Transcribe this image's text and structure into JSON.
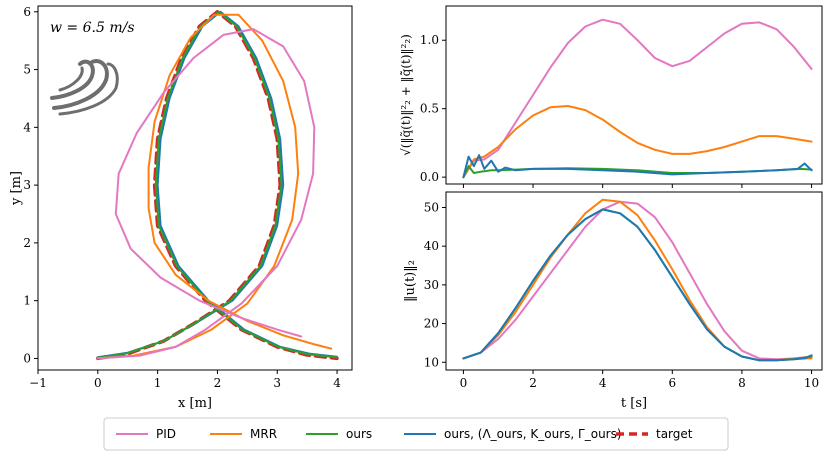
{
  "chart_data": [
    {
      "type": "line",
      "panel": "trajectory",
      "xlabel": "x [m]",
      "ylabel": "y [m]",
      "xlim": [
        -1,
        4.25
      ],
      "ylim": [
        -0.2,
        6.1
      ],
      "xticks": [
        -1,
        0,
        1,
        2,
        3,
        4
      ],
      "yticks": [
        0,
        1,
        2,
        3,
        4,
        5,
        6
      ],
      "annotation": "w = 6.5 m/s",
      "wind_icon": "wind-gust-icon",
      "series": [
        {
          "name": "target",
          "color": "#d62728",
          "dashed": true,
          "x": [
            0,
            0.5,
            1.1,
            1.6,
            2.2,
            2.7,
            2.95,
            3.05,
            3.0,
            2.85,
            2.6,
            2.3,
            2.0,
            1.7,
            1.4,
            1.15,
            1.0,
            0.95,
            1.0,
            1.3,
            1.8,
            2.4,
            3.0,
            3.5,
            4.0
          ],
          "y": [
            0,
            0.08,
            0.3,
            0.6,
            1.0,
            1.6,
            2.3,
            3.0,
            3.8,
            4.5,
            5.2,
            5.75,
            6.0,
            5.75,
            5.2,
            4.5,
            3.8,
            3.0,
            2.3,
            1.6,
            1.0,
            0.5,
            0.2,
            0.06,
            0
          ]
        },
        {
          "name": "ours, (Λ_ours, K_ours, Γ_ours)",
          "color": "#1f77b4",
          "dashed": false,
          "x": [
            0,
            0.5,
            1.1,
            1.65,
            2.25,
            2.75,
            3.0,
            3.1,
            3.05,
            2.9,
            2.65,
            2.35,
            2.05,
            1.75,
            1.45,
            1.2,
            1.05,
            1.0,
            1.05,
            1.35,
            1.85,
            2.45,
            3.05,
            3.55,
            4.0
          ],
          "y": [
            0.02,
            0.1,
            0.3,
            0.62,
            1.0,
            1.6,
            2.3,
            3.0,
            3.8,
            4.5,
            5.2,
            5.75,
            6.0,
            5.75,
            5.2,
            4.5,
            3.8,
            3.0,
            2.3,
            1.6,
            1.0,
            0.5,
            0.2,
            0.08,
            0.03
          ]
        },
        {
          "name": "ours",
          "color": "#2ca02c",
          "dashed": false,
          "x": [
            0,
            0.5,
            1.1,
            1.62,
            2.22,
            2.72,
            2.97,
            3.07,
            3.02,
            2.87,
            2.62,
            2.32,
            2.02,
            1.72,
            1.42,
            1.17,
            1.02,
            0.97,
            1.02,
            1.32,
            1.82,
            2.42,
            3.02,
            3.52,
            4.0
          ],
          "y": [
            0.01,
            0.09,
            0.3,
            0.61,
            1.0,
            1.6,
            2.3,
            3.0,
            3.8,
            4.5,
            5.2,
            5.75,
            6.0,
            5.75,
            5.2,
            4.5,
            3.8,
            3.0,
            2.3,
            1.6,
            1.0,
            0.5,
            0.2,
            0.07,
            0.02
          ]
        },
        {
          "name": "MRR",
          "color": "#ff7f0e",
          "dashed": false,
          "x": [
            0,
            0.6,
            1.3,
            1.9,
            2.5,
            2.95,
            3.25,
            3.35,
            3.3,
            3.1,
            2.75,
            2.35,
            1.95,
            1.55,
            1.2,
            0.95,
            0.85,
            0.85,
            0.95,
            1.3,
            1.85,
            2.5,
            3.1,
            3.6,
            3.9
          ],
          "y": [
            0,
            0.05,
            0.2,
            0.5,
            0.95,
            1.6,
            2.4,
            3.2,
            4.0,
            4.8,
            5.5,
            5.95,
            5.95,
            5.55,
            4.9,
            4.1,
            3.3,
            2.6,
            2.0,
            1.45,
            1.0,
            0.65,
            0.4,
            0.25,
            0.17
          ]
        },
        {
          "name": "PID",
          "color": "#e377c2",
          "dashed": false,
          "x": [
            0,
            0.7,
            1.3,
            1.8,
            2.4,
            3.0,
            3.4,
            3.6,
            3.62,
            3.45,
            3.1,
            2.6,
            2.1,
            1.6,
            1.1,
            0.65,
            0.35,
            0.3,
            0.55,
            1.05,
            1.7,
            2.4,
            3.0,
            3.4
          ],
          "y": [
            0,
            0.05,
            0.2,
            0.5,
            0.95,
            1.6,
            2.4,
            3.2,
            4.0,
            4.8,
            5.4,
            5.7,
            5.6,
            5.2,
            4.6,
            3.9,
            3.2,
            2.5,
            1.9,
            1.4,
            1.0,
            0.7,
            0.5,
            0.38
          ]
        }
      ]
    },
    {
      "type": "line",
      "panel": "tracking-error",
      "ylabel": "√(‖q̃(t)‖²₂ + ‖q̃̇(t)‖²₂)",
      "xlim": [
        -0.5,
        10.3
      ],
      "ylim": [
        -0.05,
        1.25
      ],
      "xticks": [
        0,
        2,
        4,
        6,
        8,
        10
      ],
      "yticks": [
        0.0,
        0.5,
        1.0
      ],
      "ytick_labels": [
        "0.0",
        "0.5",
        "1.0"
      ],
      "series": [
        {
          "name": "PID",
          "color": "#e377c2",
          "x": [
            0,
            0.3,
            0.6,
            1,
            1.5,
            2,
            2.5,
            3,
            3.5,
            4,
            4.5,
            5,
            5.5,
            6,
            6.5,
            7,
            7.5,
            8,
            8.5,
            9,
            9.5,
            10
          ],
          "y": [
            0,
            0.12,
            0.13,
            0.2,
            0.4,
            0.6,
            0.8,
            0.98,
            1.1,
            1.15,
            1.12,
            1.0,
            0.87,
            0.81,
            0.85,
            0.95,
            1.05,
            1.12,
            1.13,
            1.08,
            0.95,
            0.79
          ]
        },
        {
          "name": "MRR",
          "color": "#ff7f0e",
          "x": [
            0,
            0.3,
            0.6,
            1,
            1.5,
            2,
            2.5,
            3,
            3.5,
            4,
            4.5,
            5,
            5.5,
            6,
            6.5,
            7,
            7.5,
            8,
            8.5,
            9,
            9.5,
            10
          ],
          "y": [
            0,
            0.13,
            0.15,
            0.22,
            0.35,
            0.45,
            0.51,
            0.52,
            0.49,
            0.42,
            0.33,
            0.25,
            0.2,
            0.17,
            0.17,
            0.19,
            0.22,
            0.26,
            0.3,
            0.3,
            0.28,
            0.26
          ]
        },
        {
          "name": "ours",
          "color": "#2ca02c",
          "x": [
            0,
            0.15,
            0.3,
            0.5,
            0.8,
            1,
            1.5,
            2,
            3,
            4,
            5,
            6,
            7,
            8,
            9,
            9.7,
            10
          ],
          "y": [
            0,
            0.08,
            0.03,
            0.04,
            0.05,
            0.05,
            0.055,
            0.06,
            0.065,
            0.06,
            0.05,
            0.03,
            0.03,
            0.04,
            0.05,
            0.06,
            0.055
          ]
        },
        {
          "name": "ours, (Λ_ours, K_ours, Γ_ours)",
          "color": "#1f77b4",
          "x": [
            0,
            0.15,
            0.3,
            0.45,
            0.6,
            0.8,
            1,
            1.2,
            1.5,
            2,
            3,
            4,
            5,
            6,
            7,
            8,
            9,
            9.6,
            9.8,
            10
          ],
          "y": [
            0,
            0.15,
            0.08,
            0.16,
            0.06,
            0.12,
            0.04,
            0.07,
            0.05,
            0.06,
            0.06,
            0.05,
            0.04,
            0.02,
            0.03,
            0.04,
            0.05,
            0.06,
            0.1,
            0.05
          ]
        }
      ]
    },
    {
      "type": "line",
      "panel": "control-effort",
      "xlabel": "t [s]",
      "ylabel": "‖u(t)‖₂",
      "xlim": [
        -0.5,
        10.3
      ],
      "ylim": [
        8,
        54
      ],
      "xticks": [
        0,
        2,
        4,
        6,
        8,
        10
      ],
      "yticks": [
        10,
        20,
        30,
        40,
        50
      ],
      "series": [
        {
          "name": "PID",
          "color": "#e377c2",
          "x": [
            0,
            0.5,
            1,
            1.5,
            2,
            2.5,
            3,
            3.5,
            4,
            4.5,
            5,
            5.5,
            6,
            6.5,
            7,
            7.5,
            8,
            8.5,
            9,
            9.5,
            10
          ],
          "y": [
            11,
            12.5,
            16,
            21,
            27,
            33,
            39,
            45,
            49.5,
            51.5,
            51,
            47.5,
            41,
            33,
            25,
            18,
            13,
            11,
            10.8,
            11,
            11.5
          ]
        },
        {
          "name": "MRR",
          "color": "#ff7f0e",
          "x": [
            0,
            0.5,
            1,
            1.5,
            2,
            2.5,
            3,
            3.5,
            4,
            4.5,
            5,
            5.5,
            6,
            6.5,
            7,
            7.5,
            8,
            8.5,
            9,
            9.5,
            10
          ],
          "y": [
            11,
            12.5,
            17,
            23,
            30,
            37,
            43,
            48.5,
            52,
            51.5,
            48,
            41.5,
            34,
            26,
            19,
            14,
            11.5,
            10.5,
            10.5,
            11,
            11
          ]
        },
        {
          "name": "ours",
          "color": "#2ca02c",
          "x": [
            0,
            0.5,
            1,
            1.5,
            2,
            2.5,
            3,
            3.5,
            4,
            4.5,
            5,
            5.5,
            6,
            6.5,
            7,
            7.5,
            8,
            8.5,
            9,
            9.5,
            10
          ],
          "y": [
            11,
            12.5,
            17.5,
            24,
            31,
            37.5,
            43,
            47,
            49.5,
            48.5,
            45,
            39,
            32,
            25,
            18.5,
            14,
            11.5,
            10.5,
            10.5,
            10.8,
            11.5
          ]
        },
        {
          "name": "ours, (Λ_ours, K_ours, Γ_ours)",
          "color": "#1f77b4",
          "x": [
            0,
            0.5,
            1,
            1.5,
            2,
            2.5,
            3,
            3.5,
            4,
            4.5,
            5,
            5.5,
            6,
            6.5,
            7,
            7.5,
            8,
            8.5,
            9,
            9.5,
            9.8,
            10
          ],
          "y": [
            11,
            12.5,
            17.5,
            24,
            31,
            37.5,
            43,
            47,
            49.5,
            48.5,
            45,
            39,
            32,
            25,
            18.5,
            14,
            11.5,
            10.5,
            10.5,
            10.8,
            11,
            11.8
          ]
        }
      ]
    }
  ],
  "legend": {
    "placement": "bottom",
    "items": [
      {
        "label": "PID",
        "color": "#e377c2",
        "dashed": false
      },
      {
        "label": "MRR",
        "color": "#ff7f0e",
        "dashed": false
      },
      {
        "label": "ours",
        "color": "#2ca02c",
        "dashed": false
      },
      {
        "label": "ours, (Λ_ours, K_ours, Γ_ours)",
        "color": "#1f77b4",
        "dashed": false
      },
      {
        "label": "target",
        "color": "#d62728",
        "dashed": true
      }
    ]
  }
}
